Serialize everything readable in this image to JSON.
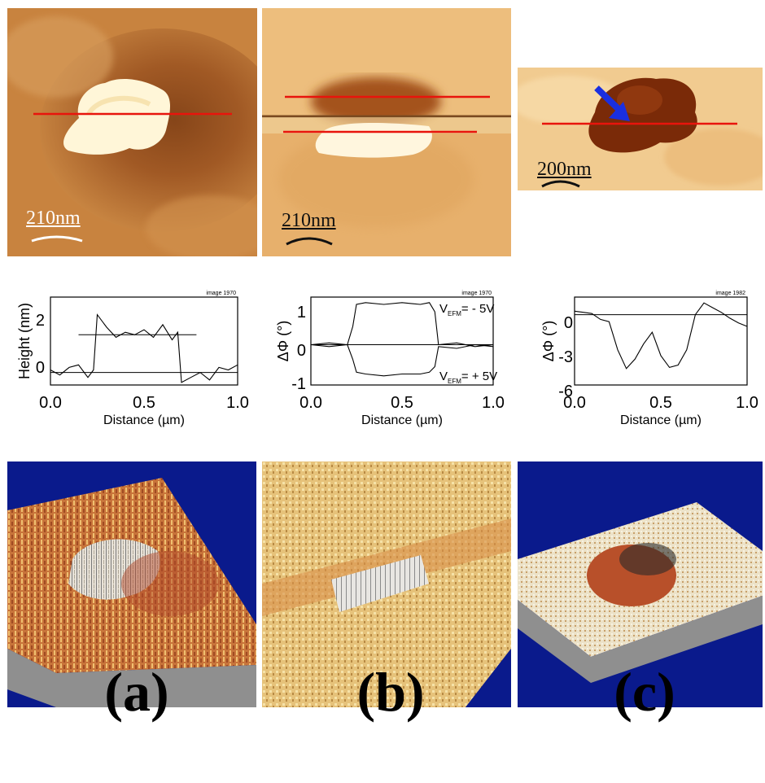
{
  "panels": [
    {
      "label": "(a)",
      "afm_scale": "210nm",
      "plot": {
        "image_tag": "image 1970",
        "xlabel": "Distance (µm)",
        "ylabel": "Height (nm)",
        "xticks": [
          "0.0",
          "0.5",
          "1.0"
        ],
        "yticks": [
          "0",
          "2"
        ]
      }
    },
    {
      "label": "(b)",
      "afm_scale": "210nm",
      "plot": {
        "image_tag": "image 1970",
        "xlabel": "Distance (µm)",
        "ylabel": "ΔΦ (°)",
        "xticks": [
          "0.0",
          "0.5",
          "1.0"
        ],
        "yticks": [
          "1",
          "0",
          "-1"
        ],
        "annot_top": "V",
        "annot_top_sub": "EFM",
        "annot_top_val": "= - 5V",
        "annot_bot": "V",
        "annot_bot_sub": "EFM",
        "annot_bot_val": "= + 5V"
      }
    },
    {
      "label": "(c)",
      "afm_scale": "200nm",
      "plot": {
        "image_tag": "image 1982",
        "xlabel": "Distance (µm)",
        "ylabel": "ΔΦ (°)",
        "xticks": [
          "0.0",
          "0.5",
          "1.0"
        ],
        "yticks": [
          "0",
          "-3",
          "-6"
        ]
      }
    }
  ],
  "chart_data": [
    {
      "type": "line",
      "xlabel": "Distance (µm)",
      "ylabel": "Height (nm)",
      "xlim": [
        0,
        1
      ],
      "ylim": [
        -0.5,
        3
      ],
      "series": [
        {
          "x": [
            0,
            0.05,
            0.1,
            0.15,
            0.2,
            0.23,
            0.25,
            0.3,
            0.35,
            0.4,
            0.45,
            0.5,
            0.55,
            0.6,
            0.65,
            0.68,
            0.7,
            0.75,
            0.8,
            0.85,
            0.9,
            0.95,
            1.0
          ],
          "y": [
            0.1,
            -0.1,
            0.2,
            0.3,
            -0.2,
            0.1,
            2.3,
            1.8,
            1.4,
            1.6,
            1.5,
            1.7,
            1.4,
            1.9,
            1.3,
            1.6,
            -0.4,
            -0.2,
            0.0,
            -0.3,
            0.2,
            0.1,
            0.3
          ]
        }
      ],
      "reference_lines": [
        0,
        1.5
      ]
    },
    {
      "type": "line",
      "xlabel": "Distance (µm)",
      "ylabel": "ΔΦ (°)",
      "xlim": [
        0,
        1
      ],
      "ylim": [
        -1.1,
        1.3
      ],
      "series": [
        {
          "x": [
            0,
            0.1,
            0.2,
            0.23,
            0.25,
            0.3,
            0.4,
            0.5,
            0.6,
            0.65,
            0.68,
            0.7,
            0.8,
            0.9,
            1.0
          ],
          "y": [
            0.0,
            0.05,
            0.0,
            0.5,
            1.1,
            1.15,
            1.1,
            1.15,
            1.1,
            1.15,
            0.9,
            0.0,
            0.05,
            -0.05,
            0.0
          ]
        },
        {
          "x": [
            0,
            0.1,
            0.2,
            0.23,
            0.25,
            0.3,
            0.4,
            0.5,
            0.6,
            0.65,
            0.68,
            0.7,
            0.8,
            0.9,
            1.0
          ],
          "y": [
            0.0,
            -0.05,
            0.0,
            -0.4,
            -0.75,
            -0.8,
            -0.85,
            -0.8,
            -0.8,
            -0.75,
            -0.6,
            -0.05,
            -0.1,
            0.0,
            -0.05
          ]
        }
      ],
      "reference_lines": [
        0
      ]
    },
    {
      "type": "line",
      "xlabel": "Distance (µm)",
      "ylabel": "ΔΦ (°)",
      "xlim": [
        0,
        1
      ],
      "ylim": [
        -6,
        1.5
      ],
      "series": [
        {
          "x": [
            0,
            0.05,
            0.1,
            0.15,
            0.2,
            0.25,
            0.3,
            0.35,
            0.4,
            0.45,
            0.5,
            0.55,
            0.6,
            0.65,
            0.7,
            0.75,
            0.8,
            0.85,
            0.9,
            0.95,
            1.0
          ],
          "y": [
            0.3,
            0.2,
            0.1,
            -0.4,
            -0.6,
            -3.0,
            -4.6,
            -3.8,
            -2.5,
            -1.5,
            -3.5,
            -4.5,
            -4.3,
            -3.0,
            0.0,
            1.0,
            0.6,
            0.2,
            -0.3,
            -0.7,
            -1.0
          ]
        }
      ],
      "reference_lines": [
        0
      ]
    }
  ],
  "colors": {
    "scan_line": "#e8140c",
    "arrow": "#1a2fe0",
    "background_3d": "#0a1a8c",
    "afm_base": "#c67d35"
  }
}
